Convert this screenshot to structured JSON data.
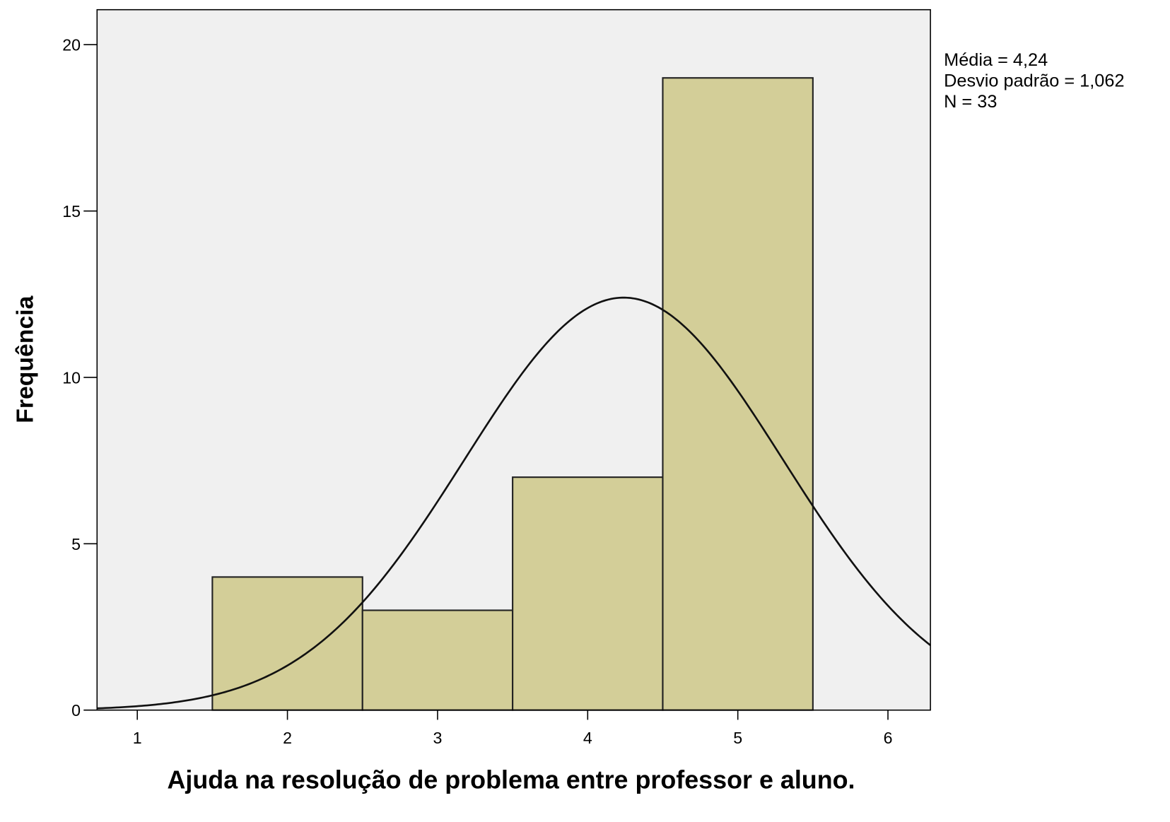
{
  "chart_data": {
    "type": "histogram",
    "xlabel": "Ajuda na resolução de problema entre professor e aluno.",
    "ylabel": "Frequência",
    "bins": [
      1.5,
      2.5,
      3.5,
      4.5,
      5.5
    ],
    "values": [
      4,
      3,
      7,
      19
    ],
    "color": "#d3ce98",
    "xlim": [
      0.732,
      6.283
    ],
    "xticks": [
      1,
      2,
      3,
      4,
      5,
      6
    ],
    "ylim": [
      0,
      21.05
    ],
    "yticks": [
      0,
      5,
      10,
      15,
      20
    ],
    "stats": [
      {
        "value": 4.24,
        "label": "Média = 4,24"
      },
      {
        "value": 1.062,
        "label": "Desvio padrão = 1,062"
      },
      {
        "value": 33,
        "label": "N = 33"
      }
    ]
  }
}
